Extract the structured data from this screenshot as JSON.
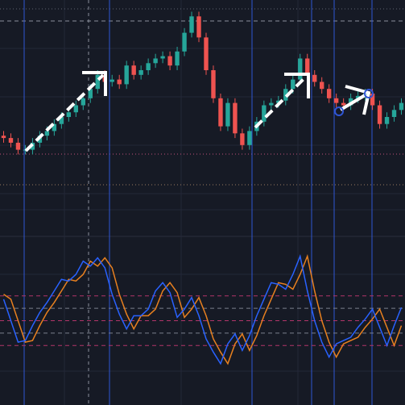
{
  "chart_data": [
    {
      "type": "candlestick",
      "open": [
        42,
        41,
        39,
        36,
        36,
        39,
        42,
        44,
        47,
        50,
        52,
        55,
        58,
        62,
        68,
        65,
        66,
        64,
        72,
        68,
        70,
        73,
        75,
        76,
        72,
        78,
        86,
        93,
        84,
        70,
        58,
        46,
        56,
        43,
        38,
        44,
        48,
        55,
        56,
        57,
        62,
        66,
        75,
        68,
        65,
        62,
        58,
        56,
        55,
        58,
        59,
        60,
        55,
        47,
        50,
        53
      ],
      "high": [
        44,
        43,
        41,
        38,
        41,
        44,
        46,
        49,
        52,
        54,
        57,
        60,
        64,
        70,
        70,
        68,
        68,
        74,
        74,
        72,
        75,
        77,
        78,
        78,
        80,
        88,
        95,
        95,
        86,
        72,
        60,
        58,
        58,
        45,
        46,
        50,
        57,
        58,
        59,
        64,
        68,
        77,
        77,
        70,
        67,
        64,
        60,
        58,
        60,
        61,
        62,
        62,
        57,
        52,
        55,
        58
      ],
      "low": [
        39,
        37,
        34,
        34,
        34,
        37,
        40,
        42,
        45,
        48,
        50,
        53,
        56,
        60,
        63,
        63,
        62,
        62,
        66,
        66,
        68,
        71,
        73,
        70,
        70,
        76,
        84,
        82,
        68,
        56,
        44,
        44,
        41,
        36,
        36,
        42,
        46,
        53,
        54,
        55,
        60,
        64,
        66,
        63,
        60,
        56,
        54,
        53,
        53,
        56,
        57,
        53,
        45,
        45,
        48,
        51
      ],
      "close": [
        41,
        39,
        36,
        36,
        39,
        42,
        44,
        47,
        50,
        52,
        55,
        58,
        62,
        68,
        65,
        66,
        64,
        72,
        68,
        70,
        73,
        75,
        76,
        72,
        78,
        86,
        93,
        84,
        70,
        58,
        46,
        56,
        43,
        38,
        44,
        48,
        55,
        56,
        57,
        62,
        66,
        75,
        68,
        65,
        62,
        58,
        56,
        55,
        58,
        59,
        60,
        55,
        47,
        50,
        53,
        56
      ],
      "up_color": "#26a69a",
      "down_color": "#ef5350",
      "ylim": [
        0,
        100
      ]
    },
    {
      "type": "line",
      "series": [
        {
          "color": "#2962ff",
          "values": [
            63,
            50,
            37,
            38,
            47,
            55,
            61,
            68,
            75,
            74,
            78,
            86,
            83,
            88,
            82,
            66,
            54,
            45,
            53,
            53,
            57,
            68,
            73,
            67,
            52,
            57,
            64,
            53,
            39,
            31,
            24,
            36,
            42,
            32,
            41,
            53,
            63,
            73,
            72,
            69,
            78,
            89,
            68,
            50,
            37,
            28,
            36,
            38,
            40,
            46,
            51,
            57,
            46,
            35,
            47,
            58
          ]
        },
        {
          "color": "#e8801f",
          "values": [
            66,
            63,
            50,
            37,
            38,
            47,
            55,
            61,
            68,
            75,
            74,
            78,
            86,
            83,
            88,
            82,
            66,
            54,
            45,
            53,
            53,
            57,
            68,
            73,
            67,
            52,
            57,
            64,
            53,
            39,
            31,
            24,
            36,
            42,
            32,
            41,
            53,
            63,
            73,
            72,
            69,
            78,
            89,
            68,
            50,
            37,
            28,
            36,
            38,
            40,
            46,
            51,
            57,
            46,
            35,
            47
          ]
        }
      ],
      "levels": [
        35,
        42.5,
        50,
        57.5,
        65
      ],
      "level_colors": [
        "#b2356a",
        "#7a7f8c",
        "#b2356a",
        "#7a7f8c",
        "#b2356a"
      ],
      "ylim": [
        0,
        100
      ]
    }
  ]
}
